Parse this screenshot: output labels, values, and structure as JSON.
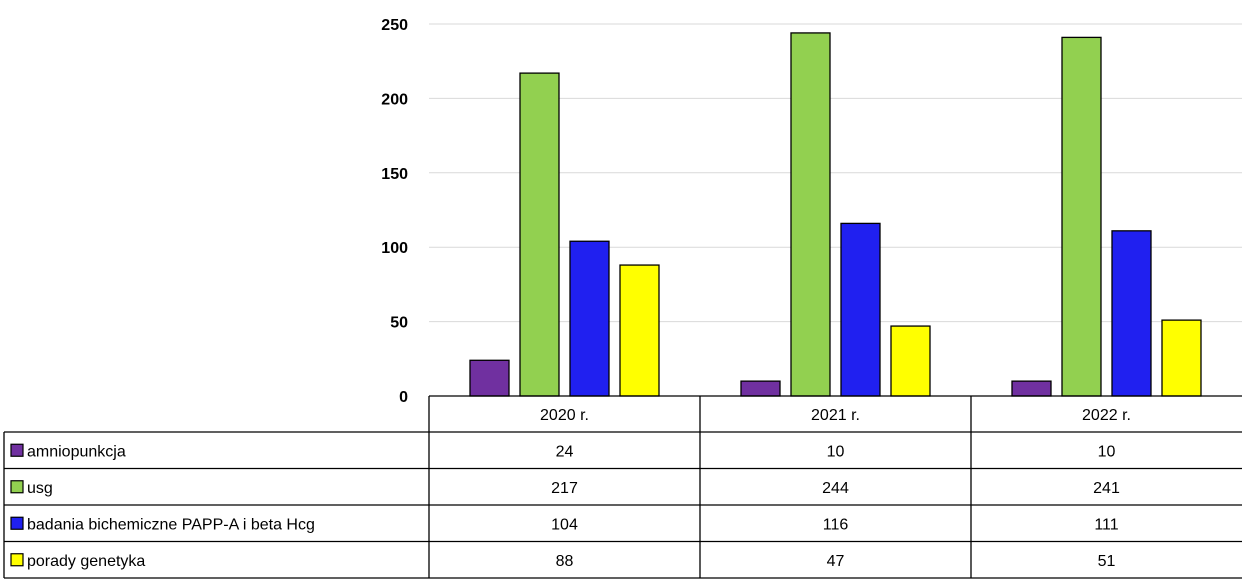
{
  "chart_data": {
    "type": "bar",
    "categories": [
      "2020 r.",
      "2021 r.",
      "2022 r."
    ],
    "series": [
      {
        "name": "amniopunkcja",
        "color": "#7030A0",
        "values": [
          24,
          10,
          10
        ]
      },
      {
        "name": "usg",
        "color": "#92D050",
        "values": [
          217,
          244,
          241
        ]
      },
      {
        "name": "badania bichemiczne PAPP-A i beta Hcg",
        "color": "#2020F0",
        "values": [
          104,
          116,
          111
        ]
      },
      {
        "name": "porady genetyka",
        "color": "#FFFF00",
        "values": [
          88,
          47,
          51
        ]
      }
    ],
    "yticks": [
      "0",
      "50",
      "100",
      "150",
      "200",
      "250"
    ],
    "ylim": [
      0,
      250
    ],
    "grid": true,
    "legend": "data-table"
  }
}
